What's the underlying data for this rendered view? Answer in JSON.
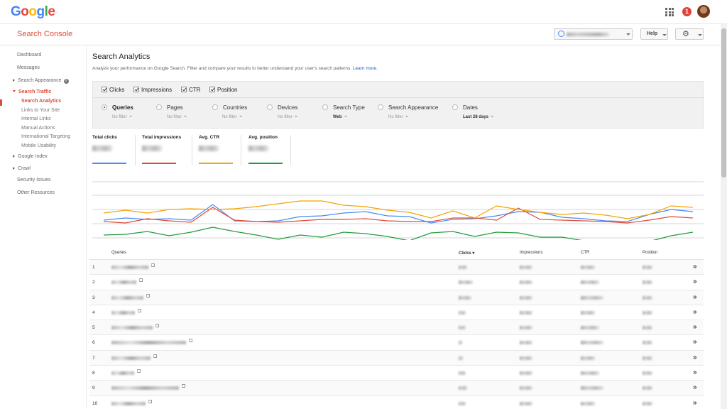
{
  "google_logo": {
    "letters": [
      "G",
      "o",
      "o",
      "g",
      "l",
      "e"
    ],
    "colors": [
      "#4285f4",
      "#ea4335",
      "#fbbc05",
      "#4285f4",
      "#34a853",
      "#ea4335"
    ]
  },
  "notifications": {
    "count": "1"
  },
  "console": {
    "title": "Search Console",
    "help_label": "Help"
  },
  "sidebar": {
    "dashboard": "Dashboard",
    "messages": "Messages",
    "search_appearance": "Search Appearance",
    "search_traffic": "Search Traffic",
    "search_analytics": "Search Analytics",
    "links_to_your_site": "Links to Your Site",
    "internal_links": "Internal Links",
    "manual_actions": "Manual Actions",
    "international_targeting": "International Targeting",
    "mobile_usability": "Mobile Usability",
    "google_index": "Google Index",
    "crawl": "Crawl",
    "security_issues": "Security Issues",
    "other_resources": "Other Resources"
  },
  "page": {
    "title": "Search Analytics",
    "description": "Analyze your performance on Google Search. Filter and compare your results to better understand your user's search patterns.",
    "learn_more": "Learn more."
  },
  "metrics": {
    "clicks": "Clicks",
    "impressions": "Impressions",
    "ctr": "CTR",
    "position": "Position"
  },
  "dimensions": {
    "queries": {
      "label": "Queries",
      "sub": "No filter"
    },
    "pages": {
      "label": "Pages",
      "sub": "No filter"
    },
    "countries": {
      "label": "Countries",
      "sub": "No filter"
    },
    "devices": {
      "label": "Devices",
      "sub": "No filter"
    },
    "search_type": {
      "label": "Search Type",
      "sub": "Web"
    },
    "search_appearance": {
      "label": "Search Appearance",
      "sub": "No filter"
    },
    "dates": {
      "label": "Dates",
      "sub": "Last 28 days"
    }
  },
  "totals": {
    "clicks": {
      "label": "Total clicks",
      "color": "#4a8af4"
    },
    "impressions": {
      "label": "Total impressions",
      "color": "#dd4b39"
    },
    "ctr": {
      "label": "Avg. CTR",
      "color": "#f4a300"
    },
    "position": {
      "label": "Avg. position",
      "color": "#1e9d3a"
    }
  },
  "chart_data": {
    "type": "line",
    "x": [
      1,
      2,
      3,
      4,
      5,
      6,
      7,
      8,
      9,
      10,
      11,
      12,
      13,
      14,
      15,
      16,
      17,
      18,
      19,
      20,
      21,
      22,
      23,
      24,
      25,
      26,
      27,
      28
    ],
    "series": [
      {
        "color": "#4a8af4",
        "values": [
          56,
          53,
          55,
          54,
          56,
          34,
          57,
          58,
          57,
          51,
          50,
          46,
          44,
          50,
          51,
          60,
          55,
          54,
          50,
          44,
          45,
          52,
          54,
          57,
          58,
          48,
          41,
          44
        ]
      },
      {
        "color": "#dd4b39",
        "values": [
          58,
          60,
          54,
          57,
          59,
          38,
          56,
          58,
          59,
          57,
          55,
          55,
          54,
          57,
          58,
          58,
          53,
          53,
          56,
          39,
          55,
          56,
          57,
          58,
          60,
          56,
          51,
          53
        ]
      },
      {
        "color": "#f4a300",
        "values": [
          46,
          42,
          46,
          41,
          40,
          41,
          40,
          37,
          33,
          29,
          29,
          35,
          37,
          42,
          45,
          53,
          43,
          53,
          36,
          41,
          45,
          48,
          46,
          49,
          54,
          48,
          36,
          38
        ]
      },
      {
        "color": "#1e9d3a",
        "values": [
          77,
          76,
          72,
          78,
          73,
          66,
          72,
          77,
          83,
          77,
          80,
          73,
          75,
          79,
          85,
          74,
          72,
          79,
          73,
          74,
          80,
          80,
          85,
          85,
          85,
          86,
          78,
          73
        ]
      }
    ]
  },
  "table": {
    "headers": {
      "queries": "Queries",
      "clicks": "Clicks ▾",
      "impressions": "Impressions",
      "ctr": "CTR",
      "position": "Position"
    },
    "rows": [
      {
        "idx": "1",
        "chev": "»"
      },
      {
        "idx": "2",
        "chev": "»"
      },
      {
        "idx": "3",
        "chev": "»"
      },
      {
        "idx": "4",
        "chev": "»"
      },
      {
        "idx": "5",
        "chev": "»"
      },
      {
        "idx": "6",
        "chev": "»"
      },
      {
        "idx": "7",
        "chev": "»"
      },
      {
        "idx": "8",
        "chev": "»"
      },
      {
        "idx": "9",
        "chev": "»"
      },
      {
        "idx": "10",
        "chev": "»"
      }
    ]
  }
}
